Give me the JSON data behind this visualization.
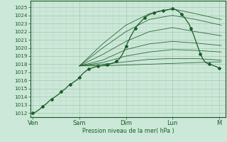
{
  "bg_color": "#cce8d8",
  "grid_color_major": "#a0c8b0",
  "grid_color_minor": "#b8d8c4",
  "line_color": "#1a5c28",
  "ylabel": "Pression niveau de la mer( hPa )",
  "ylim": [
    1011.5,
    1025.8
  ],
  "yticks": [
    1012,
    1013,
    1014,
    1015,
    1016,
    1017,
    1018,
    1019,
    1020,
    1021,
    1022,
    1023,
    1024,
    1025
  ],
  "xtick_labels": [
    "Ven",
    "Sam",
    "Dim",
    "Lun",
    "M"
  ],
  "xtick_positions": [
    0,
    1,
    2,
    3,
    4
  ],
  "xlim": [
    -0.05,
    4.15
  ],
  "observed_x": [
    0.0,
    0.05,
    0.1,
    0.15,
    0.2,
    0.25,
    0.3,
    0.35,
    0.4,
    0.45,
    0.5,
    0.55,
    0.6,
    0.65,
    0.7,
    0.75,
    0.8,
    0.85,
    0.9,
    0.95,
    1.0,
    1.05,
    1.1,
    1.15,
    1.2,
    1.25,
    1.3,
    1.35,
    1.4,
    1.45,
    1.5,
    1.55,
    1.6,
    1.65,
    1.7,
    1.75,
    1.8,
    1.85,
    1.9,
    1.95,
    2.0,
    2.05,
    2.1,
    2.15,
    2.2,
    2.25,
    2.3,
    2.35,
    2.4,
    2.45,
    2.5,
    2.55,
    2.6,
    2.65,
    2.7,
    2.75,
    2.8,
    2.85,
    2.9,
    2.95,
    3.0,
    3.05,
    3.1,
    3.15,
    3.2,
    3.25,
    3.3,
    3.35,
    3.4,
    3.45,
    3.5,
    3.55,
    3.6,
    3.65,
    3.7,
    3.75,
    3.8,
    3.85,
    3.9,
    3.95,
    4.0
  ],
  "observed_y": [
    1012.0,
    1012.1,
    1012.3,
    1012.5,
    1012.8,
    1013.0,
    1013.2,
    1013.5,
    1013.7,
    1013.9,
    1014.1,
    1014.3,
    1014.6,
    1014.8,
    1015.0,
    1015.3,
    1015.5,
    1015.7,
    1015.9,
    1016.1,
    1016.4,
    1016.7,
    1017.0,
    1017.2,
    1017.4,
    1017.5,
    1017.6,
    1017.7,
    1017.75,
    1017.8,
    1017.85,
    1017.9,
    1017.95,
    1018.0,
    1018.1,
    1018.2,
    1018.4,
    1018.6,
    1019.0,
    1019.5,
    1020.2,
    1020.8,
    1021.4,
    1021.9,
    1022.4,
    1022.8,
    1023.1,
    1023.4,
    1023.7,
    1023.9,
    1024.1,
    1024.2,
    1024.3,
    1024.4,
    1024.5,
    1024.55,
    1024.6,
    1024.65,
    1024.7,
    1024.75,
    1024.8,
    1024.75,
    1024.6,
    1024.4,
    1024.1,
    1023.8,
    1023.4,
    1023.0,
    1022.4,
    1021.7,
    1020.9,
    1020.1,
    1019.3,
    1018.7,
    1018.3,
    1018.1,
    1018.0,
    1017.9,
    1017.8,
    1017.7,
    1017.5
  ],
  "ensemble_lines": [
    {
      "x": [
        1.0,
        1.5,
        2.0,
        2.5,
        3.0,
        3.5,
        4.05
      ],
      "y": [
        1017.8,
        1017.8,
        1017.9,
        1018.0,
        1018.1,
        1018.2,
        1018.3
      ]
    },
    {
      "x": [
        1.0,
        1.5,
        2.0,
        2.5,
        3.0,
        3.5,
        4.05
      ],
      "y": [
        1017.8,
        1018.0,
        1018.3,
        1018.6,
        1018.7,
        1018.7,
        1018.5
      ]
    },
    {
      "x": [
        1.0,
        1.5,
        2.0,
        2.5,
        3.0,
        3.5,
        4.05
      ],
      "y": [
        1017.8,
        1018.2,
        1019.0,
        1019.5,
        1019.8,
        1019.7,
        1019.5
      ]
    },
    {
      "x": [
        1.0,
        1.5,
        2.0,
        2.5,
        3.0,
        3.5,
        4.05
      ],
      "y": [
        1017.8,
        1018.5,
        1019.8,
        1020.5,
        1020.8,
        1020.6,
        1020.3
      ]
    },
    {
      "x": [
        1.0,
        1.5,
        2.0,
        2.5,
        3.0,
        3.5,
        4.05
      ],
      "y": [
        1017.8,
        1019.2,
        1020.8,
        1022.0,
        1022.5,
        1022.0,
        1021.5
      ]
    },
    {
      "x": [
        1.0,
        1.5,
        2.0,
        2.5,
        3.0,
        3.5,
        4.05
      ],
      "y": [
        1017.8,
        1020.0,
        1022.0,
        1023.5,
        1024.0,
        1023.5,
        1022.8
      ]
    },
    {
      "x": [
        1.0,
        1.5,
        2.0,
        2.5,
        3.0,
        3.5,
        4.05
      ],
      "y": [
        1017.8,
        1020.5,
        1022.8,
        1024.2,
        1024.8,
        1024.2,
        1023.5
      ]
    }
  ],
  "marker_x": [
    0.0,
    0.2,
    0.4,
    0.6,
    0.8,
    1.0,
    1.2,
    1.4,
    1.6,
    1.8,
    2.0,
    2.2,
    2.4,
    2.6,
    2.8,
    3.0,
    3.2,
    3.4,
    3.6,
    3.8,
    4.0
  ],
  "marker_y": [
    1012.0,
    1012.8,
    1013.7,
    1014.6,
    1015.5,
    1016.4,
    1017.4,
    1017.75,
    1017.95,
    1018.4,
    1020.2,
    1022.4,
    1023.7,
    1024.3,
    1024.6,
    1024.8,
    1024.1,
    1022.4,
    1019.3,
    1018.0,
    1017.5
  ]
}
